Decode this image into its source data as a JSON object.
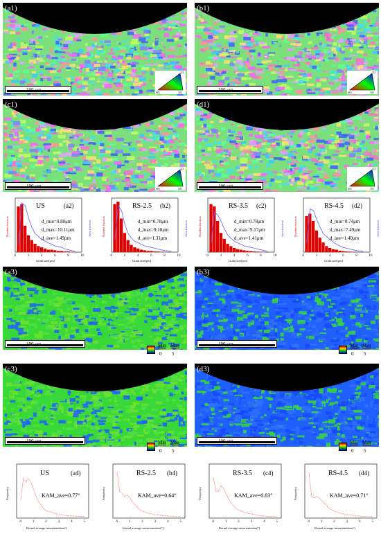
{
  "ebsd_panels": [
    {
      "label": "(a1)",
      "scale": "100 μm"
    },
    {
      "label": "(b1)",
      "scale": "100 μm"
    },
    {
      "label": "(c1)",
      "scale": "100 μm"
    },
    {
      "label": "(d1)",
      "scale": "100 μm"
    }
  ],
  "kam_panels": [
    {
      "label": "(a3)",
      "scale": "100 μm"
    },
    {
      "label": "(b3)",
      "scale": "100 μm"
    },
    {
      "label": "(c3)",
      "scale": "100 μm"
    },
    {
      "label": "(d3)",
      "scale": "100 μm"
    }
  ],
  "kam_key": {
    "min_label": "Min",
    "max_label": "Max",
    "min_value": "0",
    "max_value": "5"
  },
  "ipf_key": {
    "labels": [
      "001",
      "101",
      "111"
    ]
  },
  "grain_hist": [
    {
      "name": "US",
      "tag": "(a2)",
      "lines": [
        "d_min=0.80μm",
        "d_max=10.11μm",
        "d_ave=1.49μm"
      ]
    },
    {
      "name": "RS-2.5",
      "tag": "(b2)",
      "lines": [
        "d_min=0.78μm",
        "d_max=9.18μm",
        "d_ave=1.31μm"
      ]
    },
    {
      "name": "RS-3.5",
      "tag": "(c2)",
      "lines": [
        "d_min=0.78μm",
        "d_max=9.17μm",
        "d_ave=1.41μm"
      ]
    },
    {
      "name": "RS-4.5",
      "tag": "(d2)",
      "lines": [
        "d_min=0.74μm",
        "d_max=7.49μm",
        "d_ave=1.40μm"
      ]
    }
  ],
  "kam_hist": [
    {
      "name": "US",
      "tag": "(a4)",
      "kam": "KAM_ave=0.77°"
    },
    {
      "name": "RS-2.5",
      "tag": "(b4)",
      "kam": "KAM_ave=0.64°"
    },
    {
      "name": "RS-3.5",
      "tag": "(c4)",
      "kam": "KAM_ave=0.83°"
    },
    {
      "name": "RS-4.5",
      "tag": "(d4)",
      "kam": "KAM_ave=0.71°"
    }
  ],
  "axis_text": {
    "grain_x": "Grain size(μm)",
    "grain_y_left": "Number fraction",
    "grain_y_right": "Area fraction",
    "kam_x": "Kernel average misorientation(°)",
    "kam_y": "Frequency"
  },
  "chart_data": [
    {
      "type": "bar",
      "title": "US",
      "xlim": [
        0,
        10
      ],
      "x": [
        0.5,
        1,
        1.5,
        2,
        2.5,
        3,
        3.5,
        4,
        4.5,
        5,
        5.5,
        6,
        6.5,
        7,
        7.5,
        8,
        8.5,
        9
      ],
      "series": [
        {
          "name": "Number fraction",
          "values": [
            0.38,
            0.4,
            0.22,
            0.14,
            0.1,
            0.07,
            0.05,
            0.04,
            0.03,
            0.02,
            0.02,
            0.015,
            0.01,
            0.01,
            0.005,
            0.005,
            0.003,
            0.002
          ]
        }
      ],
      "line": [
        0.05,
        0.32,
        0.3,
        0.22,
        0.16,
        0.12,
        0.1,
        0.08,
        0.07,
        0.06,
        0.05,
        0.04,
        0.035,
        0.03,
        0.02,
        0.015,
        0.01,
        0.005
      ]
    },
    {
      "type": "bar",
      "title": "RS-2.5",
      "xlim": [
        0,
        10
      ],
      "x": [
        0.5,
        1,
        1.5,
        2,
        2.5,
        3,
        3.5,
        4,
        4.5,
        5,
        5.5,
        6,
        6.5,
        7,
        7.5,
        8,
        8.5,
        9
      ],
      "series": [
        {
          "name": "Number fraction",
          "values": [
            0.4,
            0.42,
            0.28,
            0.16,
            0.1,
            0.06,
            0.04,
            0.03,
            0.02,
            0.015,
            0.01,
            0.01,
            0.005,
            0.005,
            0.003,
            0.002,
            0.001,
            0.001
          ]
        }
      ],
      "line": [
        0.08,
        0.3,
        0.27,
        0.18,
        0.12,
        0.09,
        0.07,
        0.06,
        0.05,
        0.04,
        0.035,
        0.03,
        0.025,
        0.02,
        0.015,
        0.01,
        0.008,
        0.005
      ]
    },
    {
      "type": "bar",
      "title": "RS-3.5",
      "xlim": [
        0,
        10
      ],
      "x": [
        0.5,
        1,
        1.5,
        2,
        2.5,
        3,
        3.5,
        4,
        4.5,
        5,
        5.5,
        6,
        6.5,
        7,
        7.5,
        8,
        8.5,
        9
      ],
      "series": [
        {
          "name": "Number fraction",
          "values": [
            0.4,
            0.38,
            0.26,
            0.16,
            0.11,
            0.07,
            0.05,
            0.035,
            0.025,
            0.02,
            0.015,
            0.01,
            0.008,
            0.005,
            0.004,
            0.003,
            0.002,
            0.001
          ]
        }
      ],
      "line": [
        0.06,
        0.26,
        0.24,
        0.2,
        0.15,
        0.11,
        0.09,
        0.07,
        0.06,
        0.05,
        0.04,
        0.035,
        0.03,
        0.025,
        0.02,
        0.015,
        0.01,
        0.006
      ]
    },
    {
      "type": "bar",
      "title": "RS-4.5",
      "xlim": [
        0,
        10
      ],
      "x": [
        0.5,
        1,
        1.5,
        2,
        2.5,
        3,
        3.5,
        4,
        4.5,
        5,
        5.5,
        6,
        6.5,
        7,
        7.5,
        8,
        8.5,
        9
      ],
      "series": [
        {
          "name": "Number fraction",
          "values": [
            0.3,
            0.32,
            0.26,
            0.18,
            0.12,
            0.08,
            0.05,
            0.035,
            0.025,
            0.02,
            0.012,
            0.008,
            0.005,
            0.004,
            0.003,
            0.002,
            0.001,
            0.001
          ]
        }
      ],
      "line": [
        0.06,
        0.28,
        0.27,
        0.21,
        0.16,
        0.12,
        0.1,
        0.08,
        0.065,
        0.05,
        0.04,
        0.03,
        0.025,
        0.02,
        0.015,
        0.01,
        0.008,
        0.005
      ]
    },
    {
      "type": "line",
      "title": "US",
      "xlim": [
        0,
        5
      ],
      "ylim": [
        0,
        0.3
      ],
      "x": [
        0,
        0.2,
        0.4,
        0.6,
        0.8,
        1.0,
        1.2,
        1.4,
        1.6,
        1.8,
        2.0,
        2.5,
        3.0,
        3.5,
        4.0,
        4.5,
        5.0
      ],
      "values": [
        0.1,
        0.22,
        0.2,
        0.22,
        0.2,
        0.16,
        0.12,
        0.09,
        0.07,
        0.05,
        0.04,
        0.03,
        0.02,
        0.015,
        0.012,
        0.01,
        0.01
      ]
    },
    {
      "type": "line",
      "title": "RS-2.5",
      "xlim": [
        0,
        5
      ],
      "ylim": [
        0,
        0.4
      ],
      "x": [
        0,
        0.2,
        0.4,
        0.6,
        0.8,
        1.0,
        1.2,
        1.4,
        1.6,
        1.8,
        2.0,
        2.5,
        3.0,
        3.5,
        4.0,
        4.5,
        5.0
      ],
      "values": [
        0.34,
        0.2,
        0.18,
        0.16,
        0.17,
        0.15,
        0.12,
        0.1,
        0.08,
        0.06,
        0.05,
        0.035,
        0.025,
        0.02,
        0.015,
        0.012,
        0.01
      ]
    },
    {
      "type": "line",
      "title": "RS-3.5",
      "xlim": [
        0,
        5
      ],
      "ylim": [
        0,
        0.4
      ],
      "x": [
        0,
        0.2,
        0.4,
        0.6,
        0.8,
        1.0,
        1.2,
        1.4,
        1.6,
        1.8,
        2.0,
        2.5,
        3.0,
        3.5,
        4.0,
        4.5,
        5.0
      ],
      "values": [
        0.3,
        0.2,
        0.2,
        0.24,
        0.22,
        0.18,
        0.14,
        0.11,
        0.09,
        0.07,
        0.06,
        0.04,
        0.03,
        0.02,
        0.015,
        0.012,
        0.01
      ]
    },
    {
      "type": "line",
      "title": "RS-4.5",
      "xlim": [
        0,
        5
      ],
      "ylim": [
        0,
        0.4
      ],
      "x": [
        0,
        0.2,
        0.4,
        0.6,
        0.8,
        1.0,
        1.2,
        1.4,
        1.6,
        1.8,
        2.0,
        2.5,
        3.0,
        3.5,
        4.0,
        4.5,
        5.0
      ],
      "values": [
        0.34,
        0.16,
        0.15,
        0.16,
        0.15,
        0.13,
        0.11,
        0.09,
        0.07,
        0.06,
        0.05,
        0.035,
        0.025,
        0.02,
        0.015,
        0.012,
        0.01
      ]
    }
  ]
}
